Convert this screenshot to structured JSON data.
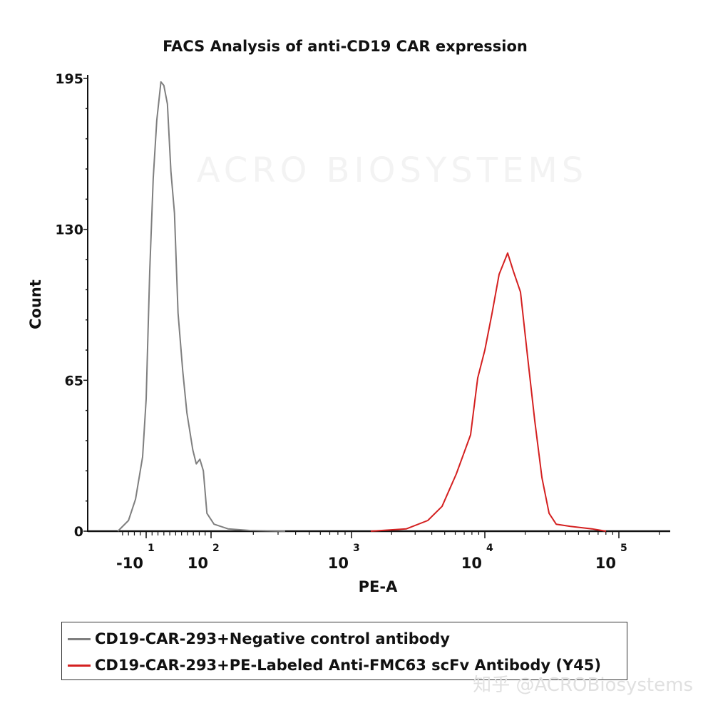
{
  "chart_data": {
    "type": "line",
    "title": "FACS Analysis of anti-CD19 CAR expression",
    "xlabel": "PE-A",
    "ylabel": "Count",
    "xscale": "biexponential",
    "xlim": [
      -60,
      200000
    ],
    "ylim": [
      0,
      195
    ],
    "yticks": [
      "0",
      "65",
      "130",
      "195"
    ],
    "xticks": [
      {
        "value": -10,
        "base": "-10",
        "exp": "1"
      },
      {
        "value": 100,
        "base": "10",
        "exp": "2"
      },
      {
        "value": 1000,
        "base": "10",
        "exp": "3"
      },
      {
        "value": 10000,
        "base": "10",
        "exp": "4"
      },
      {
        "value": 100000,
        "base": "10",
        "exp": "5"
      }
    ],
    "grid": false,
    "legend_position": "bottom",
    "series": [
      {
        "name": "CD19-CAR-293+Negative control antibody",
        "color": "#7f7f7f",
        "x": [
          -58,
          -40,
          -28,
          -16,
          -10,
          -4,
          2,
          8,
          15,
          20,
          26,
          32,
          38,
          44,
          52,
          59,
          69,
          75,
          81,
          87,
          93,
          105,
          132,
          188,
          337
        ],
        "y": [
          0,
          4.6,
          13.8,
          32,
          57,
          112,
          152,
          177,
          193.5,
          192,
          184,
          155,
          137,
          94,
          69,
          51,
          35,
          29,
          31,
          26,
          7.7,
          3,
          1,
          0.3,
          0
        ]
      },
      {
        "name": "CD19-CAR-293+PE-Labeled Anti-FMC63 scFv Antibody (Y45)",
        "color": "#d42020",
        "x": [
          1394,
          2582,
          3733,
          4775,
          6107,
          7813,
          8846,
          10000,
          11300,
          12770,
          14790,
          16320,
          18450,
          20850,
          23560,
          26660,
          30130,
          34060,
          43490,
          62800,
          80200
        ],
        "y": [
          0,
          1,
          4.6,
          10.7,
          24.6,
          41.5,
          66,
          78,
          93.7,
          110.6,
          119.8,
          112,
          103,
          75,
          47.6,
          23,
          7.7,
          3,
          2.1,
          1,
          0
        ]
      }
    ]
  },
  "watermark": {
    "background_logo": "ACRO BIOSYSTEMS",
    "corner": "知乎 @ACROBiosystems"
  }
}
